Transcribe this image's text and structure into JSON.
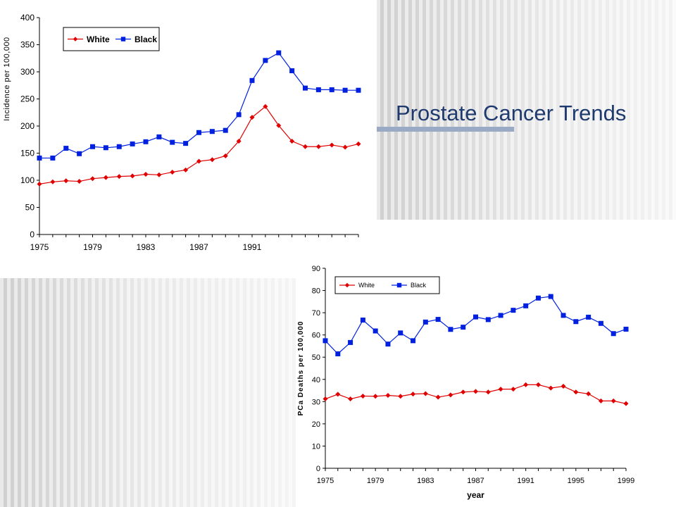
{
  "slide": {
    "title": "Prostate Cancer Trends"
  },
  "colors": {
    "white_series": "#e00000",
    "black_series": "#0020e0",
    "title_text": "#1f3a6e",
    "title_bar": "#9aaac4"
  },
  "chart_data": [
    {
      "type": "line",
      "title": "",
      "xlabel": "",
      "ylabel": "Incidence per 100,000",
      "x": [
        1975,
        1976,
        1977,
        1978,
        1979,
        1980,
        1981,
        1982,
        1983,
        1984,
        1985,
        1986,
        1987,
        1988,
        1989,
        1990,
        1991,
        1992,
        1993,
        1994,
        1995,
        1996,
        1997,
        1998,
        1999
      ],
      "xticks": [
        1975,
        1979,
        1983,
        1987,
        1991
      ],
      "yticks": [
        0,
        50,
        100,
        150,
        200,
        250,
        300,
        350,
        400
      ],
      "xlim": [
        1975,
        1999
      ],
      "ylim": [
        0,
        400
      ],
      "grid": false,
      "legend": "top-left",
      "series": [
        {
          "name": "White",
          "marker": "diamond",
          "color": "#e00000",
          "values": [
            93,
            97,
            99,
            98,
            103,
            105,
            107,
            108,
            111,
            110,
            115,
            119,
            135,
            138,
            145,
            172,
            216,
            236,
            201,
            172,
            162,
            162,
            165,
            161,
            167
          ]
        },
        {
          "name": "Black",
          "marker": "square",
          "color": "#0020e0",
          "values": [
            141,
            141,
            159,
            149,
            162,
            160,
            162,
            167,
            171,
            180,
            170,
            168,
            188,
            190,
            192,
            221,
            284,
            321,
            335,
            302,
            270,
            267,
            267,
            266,
            266
          ]
        }
      ]
    },
    {
      "type": "line",
      "title": "",
      "xlabel": "year",
      "ylabel": "PCa Deaths per 100,000",
      "x": [
        1975,
        1976,
        1977,
        1978,
        1979,
        1980,
        1981,
        1982,
        1983,
        1984,
        1985,
        1986,
        1987,
        1988,
        1989,
        1990,
        1991,
        1992,
        1993,
        1994,
        1995,
        1996,
        1997,
        1998,
        1999
      ],
      "xticks": [
        1975,
        1979,
        1983,
        1987,
        1991,
        1995,
        1999
      ],
      "yticks": [
        0,
        10,
        20,
        30,
        40,
        50,
        60,
        70,
        80,
        90
      ],
      "xlim": [
        1975,
        1999
      ],
      "ylim": [
        0,
        90
      ],
      "grid": false,
      "legend": "top-left",
      "series": [
        {
          "name": "White",
          "marker": "diamond",
          "color": "#e00000",
          "values": [
            31.2,
            33.3,
            31.2,
            32.5,
            32.4,
            32.8,
            32.4,
            33.4,
            33.6,
            32.0,
            33.0,
            34.3,
            34.6,
            34.3,
            35.6,
            35.6,
            37.6,
            37.6,
            36.1,
            36.9,
            34.3,
            33.5,
            30.3,
            30.3,
            29.1
          ]
        },
        {
          "name": "Black",
          "marker": "square",
          "color": "#0020e0",
          "values": [
            57.4,
            51.5,
            56.6,
            66.7,
            61.8,
            55.9,
            60.9,
            57.4,
            65.8,
            67.0,
            62.5,
            63.5,
            68.1,
            66.9,
            68.8,
            71.1,
            73.1,
            76.6,
            77.3,
            68.8,
            66.0,
            68.0,
            65.2,
            60.6,
            62.6
          ]
        }
      ]
    }
  ]
}
